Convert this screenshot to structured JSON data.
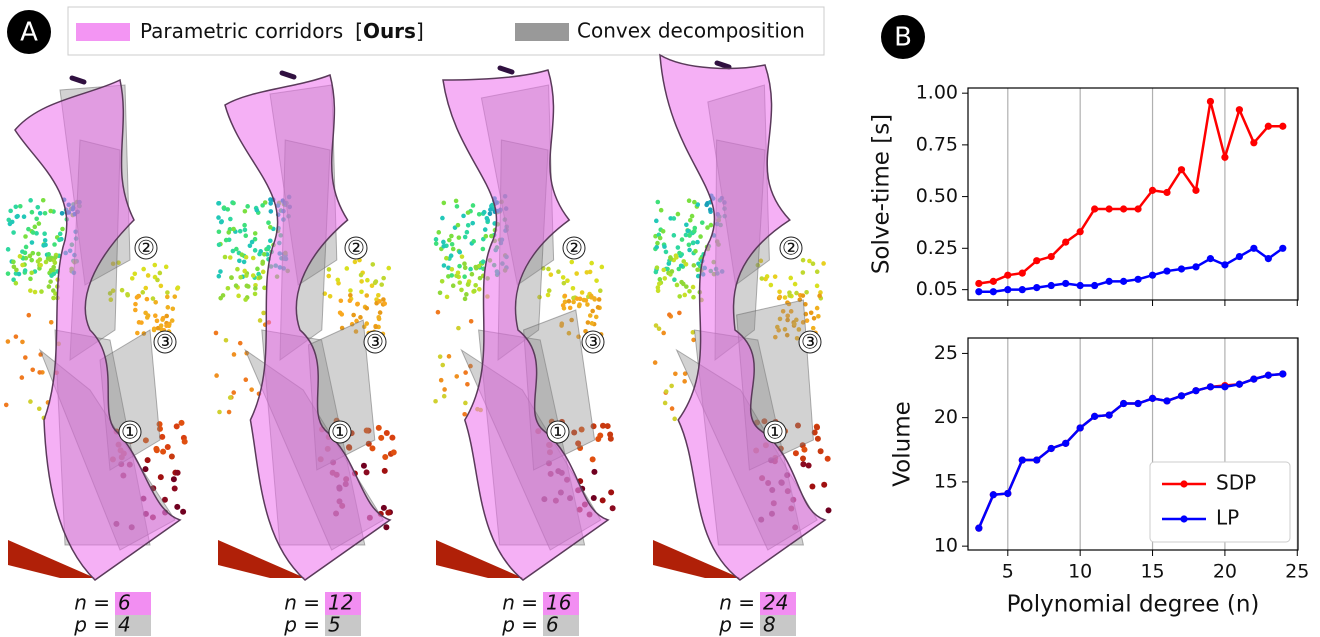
{
  "panel_labels": [
    "A",
    "B"
  ],
  "legend": {
    "corridors": "Parametric corridors",
    "ours_tag": [
      "[",
      "Ours",
      "]"
    ],
    "convex": "Convex decomposition"
  },
  "landmarks": [
    "①",
    "②",
    "③"
  ],
  "n_symbol": "n =",
  "p_symbol": "p =",
  "panels": [
    {
      "n": 6,
      "p": 4
    },
    {
      "n": 12,
      "p": 5
    },
    {
      "n": 16,
      "p": 6
    },
    {
      "n": 24,
      "p": 8
    }
  ],
  "chart_data": [
    {
      "type": "line",
      "y_label": "Solve-time [s]",
      "x": [
        3,
        4,
        5,
        6,
        7,
        8,
        9,
        10,
        11,
        12,
        13,
        14,
        15,
        16,
        17,
        18,
        19,
        20,
        21,
        22,
        23,
        24
      ],
      "series": [
        {
          "color": "#ff0000",
          "values": [
            0.08,
            0.09,
            0.12,
            0.13,
            0.19,
            0.21,
            0.28,
            0.33,
            0.44,
            0.44,
            0.44,
            0.44,
            0.53,
            0.52,
            0.63,
            0.53,
            0.96,
            0.69,
            0.92,
            0.76,
            0.84,
            0.84
          ]
        },
        {
          "color": "#0000ff",
          "values": [
            0.04,
            0.04,
            0.05,
            0.05,
            0.06,
            0.07,
            0.08,
            0.07,
            0.07,
            0.09,
            0.09,
            0.1,
            0.12,
            0.14,
            0.15,
            0.16,
            0.2,
            0.17,
            0.21,
            0.25,
            0.2,
            0.25
          ]
        }
      ],
      "xlim": [
        2.25,
        25.05
      ],
      "xticks": [
        5,
        10,
        15,
        20,
        25
      ],
      "ylim": [
        0,
        1.025
      ],
      "yticks": [
        0.05,
        0.25,
        {
          "value": 0.5,
          "label": "0.50"
        },
        0.75,
        {
          "value": 1,
          "label": "1.00"
        }
      ],
      "grid": "x"
    },
    {
      "type": "line",
      "y_label": "Volume",
      "x_label": "Polynomial degree (n)",
      "x": [
        3,
        4,
        5,
        6,
        7,
        8,
        9,
        10,
        11,
        12,
        13,
        14,
        15,
        16,
        17,
        18,
        19,
        20,
        21,
        22,
        23,
        24
      ],
      "series": [
        {
          "name": "SDP",
          "color": "#ff0000",
          "values": [
            11.4,
            14.0,
            14.1,
            16.7,
            16.7,
            17.6,
            18.0,
            19.2,
            20.1,
            20.2,
            21.1,
            21.1,
            21.5,
            21.3,
            21.7,
            22.1,
            22.4,
            22.5,
            22.6,
            23.0,
            23.3,
            23.4
          ]
        },
        {
          "name": "LP",
          "color": "#0000ff",
          "values": [
            11.4,
            14.0,
            14.1,
            16.7,
            16.7,
            17.6,
            18.0,
            19.2,
            20.1,
            20.2,
            21.1,
            21.1,
            21.5,
            21.3,
            21.7,
            22.1,
            22.4,
            22.4,
            22.6,
            23.0,
            23.3,
            23.4
          ]
        }
      ],
      "xlim": [
        2.25,
        25.05
      ],
      "xticks": [
        5,
        10,
        15,
        20,
        25
      ],
      "ylim": [
        9.7,
        26.2
      ],
      "yticks": [
        10,
        15,
        20,
        25
      ],
      "grid": "x",
      "legend": "lower right"
    }
  ]
}
